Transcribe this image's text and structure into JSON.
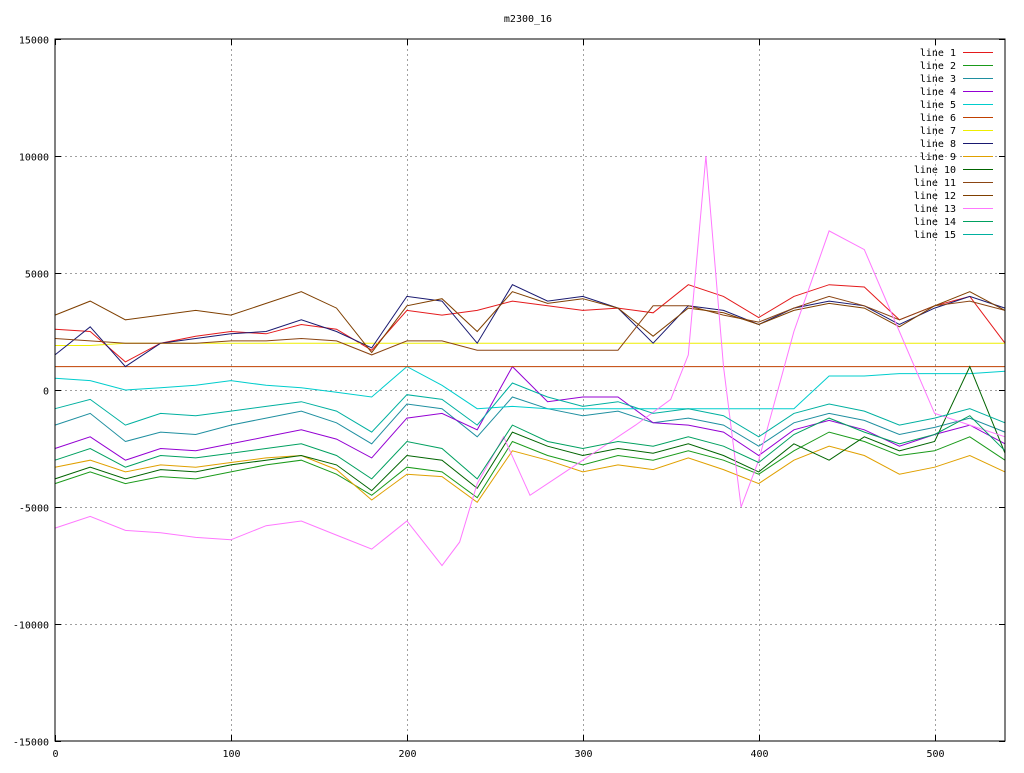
{
  "chart_data": {
    "type": "line",
    "title": "m2300_16",
    "xlabel": "",
    "ylabel": "",
    "xlim": [
      0,
      540
    ],
    "ylim": [
      -15000,
      15000
    ],
    "xticks": [
      0,
      100,
      200,
      300,
      400,
      500
    ],
    "yticks": [
      -15000,
      -10000,
      -5000,
      0,
      5000,
      10000,
      15000
    ],
    "xtick_labels": [
      "0",
      "100",
      "200",
      "300",
      "400",
      "500"
    ],
    "ytick_labels": [
      "-15000",
      "-10000",
      "-5000",
      "0",
      "5000",
      "10000",
      "15000"
    ],
    "grid": true,
    "legend_position": "top-right",
    "series": [
      {
        "name": "line 1",
        "color": "#e41a1c",
        "x": [
          0,
          20,
          40,
          60,
          80,
          100,
          120,
          140,
          160,
          180,
          200,
          220,
          240,
          260,
          280,
          300,
          320,
          340,
          360,
          380,
          400,
          420,
          440,
          460,
          480,
          500,
          520,
          540
        ],
        "values": [
          2600,
          2500,
          1200,
          2000,
          2300,
          2500,
          2400,
          2800,
          2600,
          1700,
          3400,
          3200,
          3400,
          3800,
          3600,
          3400,
          3500,
          3300,
          4500,
          4000,
          3100,
          4000,
          4500,
          4400,
          3000,
          3600,
          4000,
          2000
        ]
      },
      {
        "name": "line 2",
        "color": "#1a9a1a",
        "x": [
          0,
          20,
          40,
          60,
          80,
          100,
          120,
          140,
          160,
          180,
          200,
          220,
          240,
          260,
          280,
          300,
          320,
          340,
          360,
          380,
          400,
          420,
          440,
          460,
          480,
          500,
          520,
          540
        ],
        "values": [
          -4000,
          -3500,
          -4000,
          -3700,
          -3800,
          -3500,
          -3200,
          -3000,
          -3600,
          -4500,
          -3300,
          -3500,
          -4600,
          -2200,
          -2800,
          -3200,
          -2800,
          -3000,
          -2600,
          -3000,
          -3600,
          -2600,
          -1800,
          -2200,
          -2800,
          -2600,
          -2000,
          -3000
        ]
      },
      {
        "name": "line 3",
        "color": "#1f8fa0",
        "x": [
          0,
          20,
          40,
          60,
          80,
          100,
          120,
          140,
          160,
          180,
          200,
          220,
          240,
          260,
          280,
          300,
          320,
          340,
          360,
          380,
          400,
          420,
          440,
          460,
          480,
          500,
          520,
          540
        ],
        "values": [
          -1500,
          -1000,
          -2200,
          -1800,
          -1900,
          -1500,
          -1200,
          -900,
          -1400,
          -2300,
          -600,
          -800,
          -2000,
          -300,
          -800,
          -1100,
          -900,
          -1400,
          -1200,
          -1500,
          -2400,
          -1400,
          -1000,
          -1300,
          -1900,
          -1600,
          -1200,
          -1800
        ]
      },
      {
        "name": "line 4",
        "color": "#9400d3",
        "x": [
          0,
          20,
          40,
          60,
          80,
          100,
          120,
          140,
          160,
          180,
          200,
          220,
          240,
          260,
          280,
          300,
          320,
          340,
          360,
          380,
          400,
          420,
          440,
          460,
          480,
          500,
          520,
          540
        ],
        "values": [
          -2500,
          -2000,
          -3000,
          -2500,
          -2600,
          -2300,
          -2000,
          -1700,
          -2100,
          -2900,
          -1200,
          -1000,
          -1700,
          1000,
          -500,
          -300,
          -300,
          -1400,
          -1500,
          -1800,
          -2800,
          -1700,
          -1300,
          -1700,
          -2400,
          -1900,
          -1500,
          -2300
        ]
      },
      {
        "name": "line 5",
        "color": "#00cdcd",
        "x": [
          0,
          20,
          40,
          60,
          80,
          100,
          120,
          140,
          160,
          180,
          200,
          220,
          240,
          260,
          280,
          300,
          320,
          340,
          360,
          380,
          400,
          420,
          440,
          460,
          480,
          500,
          520,
          540
        ],
        "values": [
          500,
          400,
          0,
          100,
          200,
          400,
          200,
          100,
          -100,
          -300,
          1000,
          200,
          -800,
          -700,
          -800,
          -800,
          -800,
          -800,
          -800,
          -800,
          -800,
          -800,
          600,
          600,
          700,
          700,
          700,
          800
        ]
      },
      {
        "name": "line 6",
        "color": "#c04000",
        "x": [
          0,
          20,
          40,
          60,
          80,
          100,
          120,
          140,
          160,
          180,
          200,
          220,
          240,
          260,
          280,
          300,
          320,
          340,
          360,
          380,
          400,
          420,
          440,
          460,
          480,
          500,
          520,
          540
        ],
        "values": [
          1000,
          1000,
          1000,
          1000,
          1000,
          1000,
          1000,
          1000,
          1000,
          1000,
          1000,
          1000,
          1000,
          1000,
          1000,
          1000,
          1000,
          1000,
          1000,
          1000,
          1000,
          1000,
          1000,
          1000,
          1000,
          1000,
          1000,
          1000
        ]
      },
      {
        "name": "line 7",
        "color": "#eeee00",
        "x": [
          0,
          20,
          40,
          60,
          80,
          100,
          120,
          140,
          160,
          180,
          200,
          220,
          240,
          260,
          280,
          300,
          320,
          340,
          360,
          380,
          400,
          420,
          440,
          460,
          480,
          500,
          520,
          540
        ],
        "values": [
          1900,
          1900,
          2000,
          2000,
          2000,
          2000,
          2000,
          2000,
          2000,
          2000,
          2000,
          2000,
          2000,
          2000,
          2000,
          2000,
          2000,
          2000,
          2000,
          2000,
          2000,
          2000,
          2000,
          2000,
          2000,
          2000,
          2000,
          2000
        ]
      },
      {
        "name": "line 8",
        "color": "#191970",
        "x": [
          0,
          20,
          40,
          60,
          80,
          100,
          120,
          140,
          160,
          180,
          200,
          220,
          240,
          260,
          280,
          300,
          320,
          340,
          360,
          380,
          400,
          420,
          440,
          460,
          480,
          500,
          520,
          540
        ],
        "values": [
          1500,
          2700,
          1000,
          2000,
          2200,
          2400,
          2500,
          3000,
          2500,
          1800,
          4000,
          3800,
          2000,
          4500,
          3800,
          4000,
          3500,
          2000,
          3600,
          3400,
          2800,
          3500,
          3800,
          3600,
          2800,
          3500,
          4000,
          3500
        ]
      },
      {
        "name": "line 9",
        "color": "#e0a000",
        "x": [
          0,
          20,
          40,
          60,
          80,
          100,
          120,
          140,
          160,
          180,
          200,
          220,
          240,
          260,
          280,
          300,
          320,
          340,
          360,
          380,
          400,
          420,
          440,
          460,
          480,
          500,
          520,
          540
        ],
        "values": [
          -3300,
          -3000,
          -3500,
          -3200,
          -3300,
          -3100,
          -2900,
          -2800,
          -3400,
          -4700,
          -3600,
          -3700,
          -4800,
          -2600,
          -3000,
          -3500,
          -3200,
          -3400,
          -2900,
          -3400,
          -4000,
          -3000,
          -2400,
          -2800,
          -3600,
          -3300,
          -2800,
          -3500
        ]
      },
      {
        "name": "line 10",
        "color": "#006400",
        "x": [
          0,
          20,
          40,
          60,
          80,
          100,
          120,
          140,
          160,
          180,
          200,
          220,
          240,
          260,
          280,
          300,
          320,
          340,
          360,
          380,
          400,
          420,
          440,
          460,
          480,
          500,
          520,
          540
        ],
        "values": [
          -3800,
          -3300,
          -3800,
          -3400,
          -3500,
          -3200,
          -3000,
          -2800,
          -3200,
          -4300,
          -2800,
          -3000,
          -4200,
          -1800,
          -2400,
          -2800,
          -2500,
          -2700,
          -2300,
          -2800,
          -3500,
          -2300,
          -3000,
          -2000,
          -2600,
          -2200,
          1000,
          -2700
        ]
      },
      {
        "name": "line 11",
        "color": "#8b4513",
        "x": [
          0,
          20,
          40,
          60,
          80,
          100,
          120,
          140,
          160,
          180,
          200,
          220,
          240,
          260,
          280,
          300,
          320,
          340,
          360,
          380,
          400,
          420,
          440,
          460,
          480,
          500,
          520,
          540
        ],
        "values": [
          2200,
          2100,
          2000,
          2000,
          2000,
          2100,
          2100,
          2200,
          2100,
          1500,
          2100,
          2100,
          1700,
          1700,
          1700,
          1700,
          1700,
          3600,
          3600,
          3200,
          2900,
          3500,
          4000,
          3600,
          3000,
          3600,
          3800,
          3400
        ]
      },
      {
        "name": "line 12",
        "color": "#7f3f00",
        "x": [
          0,
          20,
          40,
          60,
          80,
          100,
          120,
          140,
          160,
          180,
          200,
          220,
          240,
          260,
          280,
          300,
          320,
          340,
          360,
          380,
          400,
          420,
          440,
          460,
          480,
          500,
          520,
          540
        ],
        "values": [
          3200,
          3800,
          3000,
          3200,
          3400,
          3200,
          3700,
          4200,
          3500,
          1600,
          3600,
          3900,
          2500,
          4200,
          3700,
          3900,
          3500,
          2300,
          3500,
          3300,
          2800,
          3400,
          3700,
          3500,
          2700,
          3600,
          4200,
          3400
        ]
      },
      {
        "name": "line 13",
        "color": "#ff77ff",
        "x": [
          0,
          20,
          40,
          60,
          80,
          100,
          120,
          140,
          160,
          180,
          200,
          220,
          230,
          240,
          255,
          270,
          290,
          310,
          330,
          350,
          360,
          370,
          380,
          390,
          400,
          420,
          440,
          460,
          480,
          500,
          520,
          540
        ],
        "values": [
          -5900,
          -5400,
          -6000,
          -6100,
          -6300,
          -6400,
          -5800,
          -5600,
          -6200,
          -6800,
          -5600,
          -7500,
          -6500,
          -4000,
          -2000,
          -4500,
          -3500,
          -2500,
          -1500,
          -400,
          1500,
          10000,
          1000,
          -5000,
          -3000,
          2500,
          6800,
          6000,
          2500,
          -1000,
          -1500,
          -2000
        ]
      },
      {
        "name": "line 14",
        "color": "#00a060",
        "x": [
          0,
          20,
          40,
          60,
          80,
          100,
          120,
          140,
          160,
          180,
          200,
          220,
          240,
          260,
          280,
          300,
          320,
          340,
          360,
          380,
          400,
          420,
          440,
          460,
          480,
          500,
          520,
          540
        ],
        "values": [
          -3000,
          -2500,
          -3300,
          -2800,
          -2900,
          -2700,
          -2500,
          -2300,
          -2800,
          -3800,
          -2200,
          -2500,
          -3800,
          -1500,
          -2200,
          -2500,
          -2200,
          -2400,
          -2000,
          -2400,
          -3100,
          -1900,
          -1200,
          -1800,
          -2300,
          -1900,
          -1100,
          -2600
        ]
      },
      {
        "name": "line 15",
        "color": "#00b0a0",
        "x": [
          0,
          20,
          40,
          60,
          80,
          100,
          120,
          140,
          160,
          180,
          200,
          220,
          240,
          260,
          280,
          300,
          320,
          340,
          360,
          380,
          400,
          420,
          440,
          460,
          480,
          500,
          520,
          540
        ],
        "values": [
          -800,
          -400,
          -1500,
          -1000,
          -1100,
          -900,
          -700,
          -500,
          -900,
          -1800,
          -200,
          -400,
          -1500,
          300,
          -300,
          -700,
          -500,
          -1000,
          -800,
          -1100,
          -2000,
          -1000,
          -600,
          -900,
          -1500,
          -1200,
          -800,
          -1400
        ]
      }
    ]
  }
}
